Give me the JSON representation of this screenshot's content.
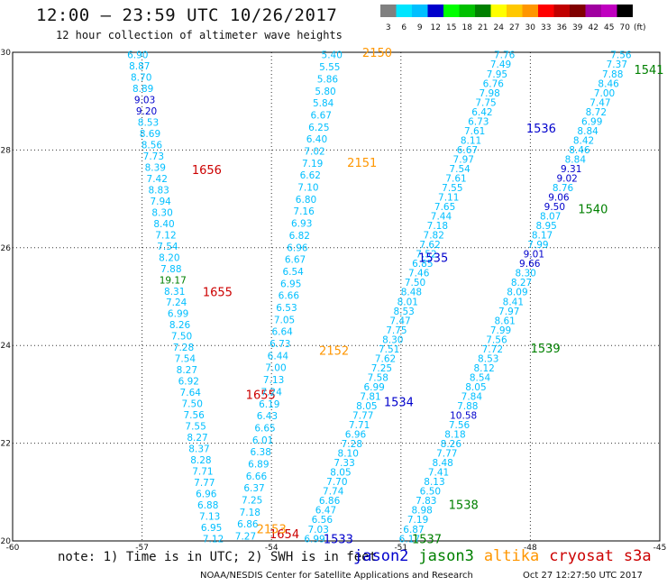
{
  "header": {
    "title": "12:00 – 23:59 UTC 10/26/2017",
    "subtitle": "12 hour collection of altimeter wave heights"
  },
  "colorbar": {
    "bins": [
      {
        "label": "3",
        "color": "#808080"
      },
      {
        "label": "6",
        "color": "#00e5ff"
      },
      {
        "label": "9",
        "color": "#00bfff"
      },
      {
        "label": "12",
        "color": "#0000cc"
      },
      {
        "label": "15",
        "color": "#00ff00"
      },
      {
        "label": "18",
        "color": "#00c000"
      },
      {
        "label": "21",
        "color": "#008000"
      },
      {
        "label": "24",
        "color": "#ffff00"
      },
      {
        "label": "27",
        "color": "#ffc800"
      },
      {
        "label": "30",
        "color": "#ff9600"
      },
      {
        "label": "33",
        "color": "#ff0000"
      },
      {
        "label": "36",
        "color": "#c00000"
      },
      {
        "label": "39",
        "color": "#800000"
      },
      {
        "label": "42",
        "color": "#a000a0"
      },
      {
        "label": "45",
        "color": "#c000c0"
      },
      {
        "label": "70",
        "color": "#000000"
      }
    ],
    "unit_label": "(ft)"
  },
  "note": "note: 1) Time is in UTC; 2) SWH is in feet",
  "legend": [
    {
      "name": "jason2",
      "color": "#0000cc"
    },
    {
      "name": "jason3",
      "color": "#008000"
    },
    {
      "name": "altika",
      "color": "#ff9600"
    },
    {
      "name": "cryosat",
      "color": "#cc0000"
    },
    {
      "name": "s3a",
      "color": "#cc0000"
    }
  ],
  "footer": {
    "credit": "NOAA/NESDIS Center for Satellite Applications and Research",
    "timestamp": "Oct 27 12:27:50 UTC 2017"
  },
  "chart_data": {
    "type": "scatter",
    "xlim": [
      -60,
      -45
    ],
    "ylim": [
      20,
      30
    ],
    "x_ticks": [
      "-60",
      "-57",
      "-54",
      "-51",
      "-48",
      "-45"
    ],
    "y_ticks": [
      "20",
      "22",
      "24",
      "26",
      "28",
      "30"
    ],
    "grid": true,
    "tracks": [
      {
        "satellite": "cryosat",
        "color": "#00bfff",
        "start": [
          -57.1,
          29.95
        ],
        "end": [
          -55.35,
          20.05
        ],
        "values": [
          "6.90",
          "8.87",
          "8.70",
          "8.89",
          "9.03",
          "9.20",
          "8.53",
          "8.69",
          "8.56",
          "7.73",
          "8.39",
          "7.42",
          "8.83",
          "7.94",
          "8.30",
          "8.40",
          "7.12",
          "7.54",
          "8.20",
          "7.88",
          "19.17",
          "8.31",
          "7.24",
          "6.99",
          "8.26",
          "7.50",
          "7.28",
          "7.54",
          "8.27",
          "6.92",
          "7.64",
          "7.50",
          "7.56",
          "7.55",
          "8.27",
          "8.37",
          "8.28",
          "7.71",
          "7.77",
          "6.96",
          "6.88",
          "7.13",
          "6.95",
          "7.12"
        ],
        "labels": [
          {
            "text": "1656",
            "x": -55.5,
            "y": 27.6
          },
          {
            "text": "1655",
            "x": -55.25,
            "y": 25.1
          },
          {
            "text": "1655",
            "x": -54.25,
            "y": 23.0
          },
          {
            "text": "1654",
            "x": -53.7,
            "y": 20.15
          }
        ]
      },
      {
        "satellite": "altika",
        "color": "#00bfff",
        "start": [
          -52.6,
          29.95
        ],
        "end": [
          -54.6,
          20.1
        ],
        "values": [
          "5.40",
          "5.55",
          "5.86",
          "5.80",
          "5.84",
          "6.67",
          "6.25",
          "6.40",
          "7.02",
          "7.19",
          "6.62",
          "7.10",
          "6.80",
          "7.16",
          "6.93",
          "6.82",
          "6.96",
          "6.67",
          "6.54",
          "6.95",
          "6.66",
          "6.53",
          "7.05",
          "6.64",
          "6.73",
          "6.44",
          "7.00",
          "7.13",
          "7.24",
          "6.19",
          "6.43",
          "6.65",
          "6.01",
          "6.38",
          "6.89",
          "6.66",
          "6.37",
          "7.25",
          "7.18",
          "6.86",
          "7.27"
        ],
        "labels": [
          {
            "text": "2150",
            "x": -51.55,
            "y": 30.0
          },
          {
            "text": "2151",
            "x": -51.9,
            "y": 27.75
          },
          {
            "text": "2152",
            "x": -52.55,
            "y": 23.9
          },
          {
            "text": "2153",
            "x": -54.0,
            "y": 20.25
          }
        ]
      },
      {
        "satellite": "jason2",
        "color": "#00bfff",
        "start": [
          -48.6,
          29.95
        ],
        "end": [
          -53.0,
          20.05
        ],
        "values": [
          "7.76",
          "7.49",
          "7.95",
          "6.76",
          "7.98",
          "7.75",
          "6.42",
          "6.73",
          "7.61",
          "8.11",
          "6.67",
          "7.97",
          "7.54",
          "7.61",
          "7.55",
          "7.11",
          "7.65",
          "7.44",
          "7.18",
          "7.82",
          "7.62",
          "7.52",
          "6.85",
          "7.46",
          "7.50",
          "8.48",
          "8.01",
          "8.53",
          "7.47",
          "7.75",
          "8.30",
          "7.51",
          "7.62",
          "7.25",
          "7.58",
          "6.99",
          "7.81",
          "8.05",
          "7.77",
          "7.71",
          "6.96",
          "7.28",
          "8.10",
          "7.33",
          "8.05",
          "7.70",
          "7.74",
          "6.86",
          "6.47",
          "6.56",
          "7.03",
          "6.99"
        ],
        "labels": [
          {
            "text": "1536",
            "x": -47.75,
            "y": 28.45
          },
          {
            "text": "1535",
            "x": -50.25,
            "y": 25.8
          },
          {
            "text": "1534",
            "x": -51.05,
            "y": 22.85
          },
          {
            "text": "1533",
            "x": -52.45,
            "y": 20.05
          }
        ]
      },
      {
        "satellite": "jason3",
        "color": "#00bfff",
        "start": [
          -45.9,
          29.95
        ],
        "end": [
          -50.8,
          20.05
        ],
        "values": [
          "7.56",
          "7.37",
          "7.88",
          "8.46",
          "7.00",
          "7.47",
          "8.72",
          "6.99",
          "8.84",
          "8.42",
          "8.46",
          "8.84",
          "9.31",
          "9.02",
          "8.76",
          "9.06",
          "9.50",
          "8.07",
          "8.95",
          "8.17",
          "7.99",
          "9.01",
          "9.66",
          "8.30",
          "8.27",
          "8.09",
          "8.41",
          "7.97",
          "8.61",
          "7.99",
          "7.56",
          "7.72",
          "8.53",
          "8.12",
          "8.54",
          "8.05",
          "7.84",
          "7.88",
          "10.58",
          "7.56",
          "8.18",
          "8.26",
          "7.77",
          "8.48",
          "7.41",
          "8.13",
          "6.50",
          "7.83",
          "8.98",
          "7.19",
          "6.87",
          "6.17"
        ],
        "labels": [
          {
            "text": "1541",
            "x": -45.25,
            "y": 29.65
          },
          {
            "text": "1540",
            "x": -46.55,
            "y": 26.8
          },
          {
            "text": "1539",
            "x": -47.65,
            "y": 23.95
          },
          {
            "text": "1538",
            "x": -49.55,
            "y": 20.75
          },
          {
            "text": "1537",
            "x": -50.4,
            "y": 20.05
          }
        ]
      }
    ],
    "highlight_values": {
      "9.03": "#0000cc",
      "9.20": "#0000cc",
      "19.17": "#008000",
      "9.31": "#0000cc",
      "9.02": "#0000cc",
      "9.06": "#0000cc",
      "9.50": "#0000cc",
      "9.01": "#0000cc",
      "9.66": "#0000cc",
      "10.58": "#0000cc"
    },
    "label_colors": {
      "cryosat": "#cc0000",
      "altika": "#ff9600",
      "jason2": "#0000cc",
      "jason3": "#008000"
    }
  }
}
